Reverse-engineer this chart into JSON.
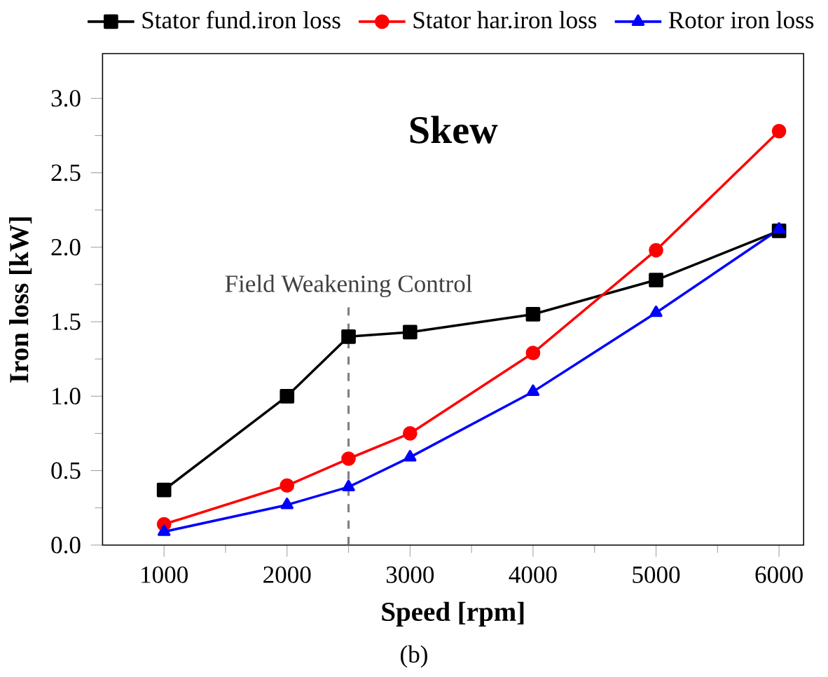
{
  "chart_data": {
    "type": "line",
    "title": "Skew",
    "xlabel": "Speed [rpm]",
    "ylabel": "Iron loss [kW]",
    "x": [
      1000,
      2000,
      2500,
      3000,
      4000,
      5000,
      6000
    ],
    "series": [
      {
        "name": "Stator fund.iron loss",
        "color": "#000000",
        "marker": "square",
        "values": [
          0.37,
          1.0,
          1.4,
          1.43,
          1.55,
          1.78,
          2.11
        ]
      },
      {
        "name": "Stator har.iron loss",
        "color": "#ff0000",
        "marker": "circle",
        "values": [
          0.14,
          0.4,
          0.58,
          0.75,
          1.29,
          1.98,
          2.78
        ]
      },
      {
        "name": "Rotor iron loss",
        "color": "#0000ff",
        "marker": "triangle",
        "values": [
          0.09,
          0.27,
          0.39,
          0.59,
          1.03,
          1.56,
          2.12
        ]
      }
    ],
    "xlim": [
      500,
      6200
    ],
    "xticks": [
      1000,
      2000,
      3000,
      4000,
      5000,
      6000
    ],
    "ylim": [
      0,
      3.3
    ],
    "yticks": [
      {
        "value": 0,
        "label": "0.0"
      },
      0.5,
      {
        "value": 1,
        "label": "1.0"
      },
      1.5,
      {
        "value": 2,
        "label": "2.0"
      },
      2.5,
      {
        "value": 3,
        "label": "3.0"
      }
    ],
    "ref_lines": [
      {
        "axis": "x",
        "value": 2500,
        "label": "Field Weakening Control",
        "color": "#808080",
        "line_style": "dashed"
      }
    ],
    "legend": "top",
    "grid": false,
    "line_style": "solid",
    "annotations": [
      "(b)"
    ]
  }
}
